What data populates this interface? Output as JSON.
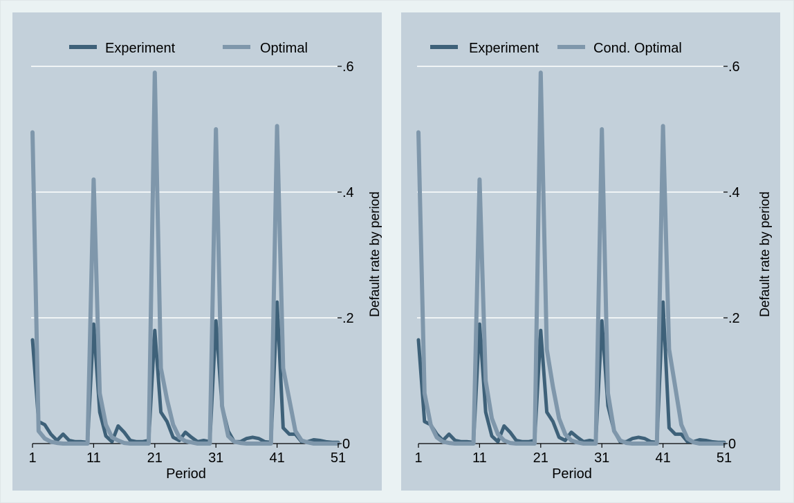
{
  "colors": {
    "page_bg": "#eaf2f3",
    "plot_bg": "#c3d0da",
    "grid": "#ffffff",
    "experiment": "#3e6179",
    "optimal": "#7f97ab"
  },
  "chart_data": [
    {
      "type": "line",
      "title": "",
      "xlabel": "Period",
      "ylabel": "Default rate by period",
      "xlim": [
        1,
        51
      ],
      "ylim": [
        0,
        0.6
      ],
      "x_ticks": [
        1,
        11,
        21,
        31,
        41,
        51
      ],
      "y_ticks": [
        0,
        0.2,
        0.4,
        0.6
      ],
      "y_tick_labels": [
        "0",
        ".2",
        ".4",
        ".6"
      ],
      "y_axis_side": "right",
      "grid": true,
      "legend": "top",
      "series": [
        {
          "name": "Experiment",
          "color_key": "experiment",
          "x": [
            1,
            2,
            3,
            4,
            5,
            6,
            7,
            8,
            9,
            10,
            11,
            12,
            13,
            14,
            15,
            16,
            17,
            18,
            19,
            20,
            21,
            22,
            23,
            24,
            25,
            26,
            27,
            28,
            29,
            30,
            31,
            32,
            33,
            34,
            35,
            36,
            37,
            38,
            39,
            40,
            41,
            42,
            43,
            44,
            45,
            46,
            47,
            48,
            49,
            50,
            51
          ],
          "values": [
            0.165,
            0.035,
            0.03,
            0.015,
            0.005,
            0.015,
            0.005,
            0.003,
            0.003,
            0.002,
            0.19,
            0.05,
            0.012,
            0.003,
            0.028,
            0.018,
            0.005,
            0.003,
            0.003,
            0.005,
            0.18,
            0.05,
            0.035,
            0.01,
            0.005,
            0.018,
            0.01,
            0.003,
            0.005,
            0.003,
            0.195,
            0.06,
            0.02,
            0.003,
            0.003,
            0.008,
            0.01,
            0.008,
            0.003,
            0.002,
            0.225,
            0.025,
            0.015,
            0.015,
            0.003,
            0.003,
            0.006,
            0.005,
            0.003,
            0.002,
            0.002
          ]
        },
        {
          "name": "Optimal",
          "color_key": "optimal",
          "x": [
            1,
            2,
            3,
            4,
            5,
            6,
            7,
            8,
            9,
            10,
            11,
            12,
            13,
            14,
            15,
            16,
            17,
            18,
            19,
            20,
            21,
            22,
            23,
            24,
            25,
            26,
            27,
            28,
            29,
            30,
            31,
            32,
            33,
            34,
            35,
            36,
            37,
            38,
            39,
            40,
            41,
            42,
            43,
            44,
            45,
            46,
            47,
            48,
            49,
            50,
            51
          ],
          "values": [
            0.495,
            0.02,
            0.008,
            0.003,
            0.001,
            0,
            0,
            0,
            0,
            0,
            0.42,
            0.08,
            0.03,
            0.01,
            0.005,
            0.001,
            0,
            0,
            0,
            0,
            0.59,
            0.12,
            0.07,
            0.03,
            0.01,
            0.004,
            0.002,
            0,
            0,
            0,
            0.5,
            0.06,
            0.012,
            0.003,
            0.001,
            0,
            0,
            0,
            0,
            0,
            0.505,
            0.12,
            0.07,
            0.02,
            0.005,
            0.002,
            0,
            0,
            0,
            0,
            0
          ]
        }
      ]
    },
    {
      "type": "line",
      "title": "",
      "xlabel": "Period",
      "ylabel": "Default rate by period",
      "xlim": [
        1,
        51
      ],
      "ylim": [
        0,
        0.6
      ],
      "x_ticks": [
        1,
        11,
        21,
        31,
        41,
        51
      ],
      "y_ticks": [
        0,
        0.2,
        0.4,
        0.6
      ],
      "y_tick_labels": [
        "0",
        ".2",
        ".4",
        ".6"
      ],
      "y_axis_side": "right",
      "grid": true,
      "legend": "top",
      "series": [
        {
          "name": "Experiment",
          "color_key": "experiment",
          "x": [
            1,
            2,
            3,
            4,
            5,
            6,
            7,
            8,
            9,
            10,
            11,
            12,
            13,
            14,
            15,
            16,
            17,
            18,
            19,
            20,
            21,
            22,
            23,
            24,
            25,
            26,
            27,
            28,
            29,
            30,
            31,
            32,
            33,
            34,
            35,
            36,
            37,
            38,
            39,
            40,
            41,
            42,
            43,
            44,
            45,
            46,
            47,
            48,
            49,
            50,
            51
          ],
          "values": [
            0.165,
            0.035,
            0.03,
            0.015,
            0.005,
            0.015,
            0.005,
            0.003,
            0.003,
            0.002,
            0.19,
            0.05,
            0.012,
            0.003,
            0.028,
            0.018,
            0.005,
            0.003,
            0.003,
            0.005,
            0.18,
            0.05,
            0.035,
            0.01,
            0.005,
            0.018,
            0.01,
            0.003,
            0.005,
            0.003,
            0.195,
            0.06,
            0.02,
            0.003,
            0.003,
            0.008,
            0.01,
            0.008,
            0.003,
            0.002,
            0.225,
            0.025,
            0.015,
            0.015,
            0.003,
            0.003,
            0.006,
            0.005,
            0.003,
            0.002,
            0.002
          ]
        },
        {
          "name": "Cond. Optimal",
          "color_key": "optimal",
          "x": [
            1,
            2,
            3,
            4,
            5,
            6,
            7,
            8,
            9,
            10,
            11,
            12,
            13,
            14,
            15,
            16,
            17,
            18,
            19,
            20,
            21,
            22,
            23,
            24,
            25,
            26,
            27,
            28,
            29,
            30,
            31,
            32,
            33,
            34,
            35,
            36,
            37,
            38,
            39,
            40,
            41,
            42,
            43,
            44,
            45,
            46,
            47,
            48,
            49,
            50,
            51
          ],
          "values": [
            0.495,
            0.08,
            0.03,
            0.01,
            0.003,
            0.001,
            0,
            0,
            0,
            0,
            0.42,
            0.1,
            0.04,
            0.015,
            0.005,
            0.001,
            0,
            0,
            0,
            0,
            0.59,
            0.15,
            0.09,
            0.04,
            0.015,
            0.005,
            0.002,
            0,
            0,
            0,
            0.5,
            0.08,
            0.02,
            0.005,
            0.001,
            0,
            0,
            0,
            0,
            0,
            0.505,
            0.15,
            0.09,
            0.03,
            0.008,
            0.002,
            0,
            0,
            0,
            0,
            0
          ]
        }
      ]
    }
  ]
}
